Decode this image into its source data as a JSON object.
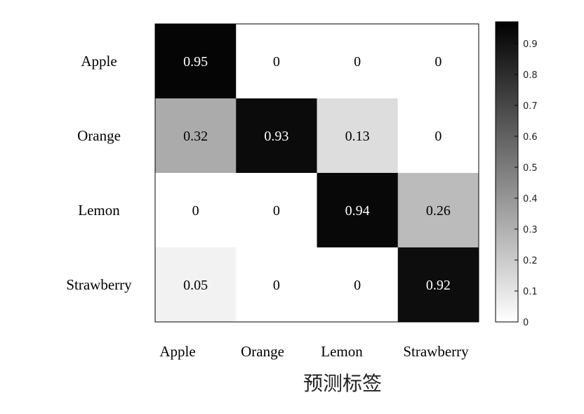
{
  "chart_data": {
    "type": "heatmap",
    "title": "",
    "xlabel": "预测标签",
    "ylabel": "",
    "x_categories": [
      "Apple",
      "Orange",
      "Lemon",
      "Strawberry"
    ],
    "y_categories": [
      "Apple",
      "Orange",
      "Lemon",
      "Strawberry"
    ],
    "values": [
      [
        0.95,
        0,
        0,
        0
      ],
      [
        0.32,
        0.93,
        0.13,
        0
      ],
      [
        0,
        0,
        0.94,
        0.26
      ],
      [
        0.05,
        0,
        0,
        0.92
      ]
    ],
    "cell_labels": [
      [
        "0.95",
        "0",
        "0",
        "0"
      ],
      [
        "0.32",
        "0.93",
        "0.13",
        "0"
      ],
      [
        "0",
        "0",
        "0.94",
        "0.26"
      ],
      [
        "0.05",
        "0",
        "0",
        "0.92"
      ]
    ],
    "colorbar": {
      "range": [
        0,
        0.97
      ],
      "ticks": [
        0,
        0.1,
        0.2,
        0.3,
        0.4,
        0.5,
        0.6,
        0.7,
        0.8,
        0.9
      ],
      "tick_labels": [
        "0",
        "0.1",
        "0.2",
        "0.3",
        "0.4",
        "0.5",
        "0.6",
        "0.7",
        "0.8",
        "0.9"
      ],
      "colormap": "white-to-black"
    },
    "grid": false
  }
}
